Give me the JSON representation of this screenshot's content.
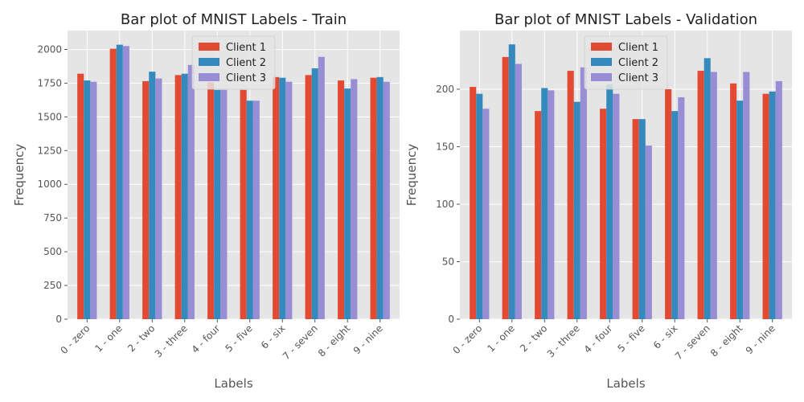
{
  "chart_data": [
    {
      "type": "bar",
      "title": "Bar plot of MNIST Labels - Train",
      "xlabel": "Labels",
      "ylabel": "Frequency",
      "categories": [
        "0 - zero",
        "1 - one",
        "2 - two",
        "3 - three",
        "4 - four",
        "5 - five",
        "6 - six",
        "7 - seven",
        "8 - eight",
        "9 - nine"
      ],
      "ylim": [
        0,
        2140
      ],
      "yticks": [
        0,
        250,
        500,
        750,
        1000,
        1250,
        1500,
        1750,
        2000
      ],
      "series": [
        {
          "name": "Client 1",
          "color": "#E24A33",
          "values": [
            1820,
            2005,
            1765,
            1810,
            1755,
            1700,
            1795,
            1810,
            1770,
            1790
          ]
        },
        {
          "name": "Client 2",
          "color": "#348ABD",
          "values": [
            1770,
            2035,
            1835,
            1820,
            1700,
            1620,
            1790,
            1860,
            1710,
            1795
          ]
        },
        {
          "name": "Client 3",
          "color": "#988ED5",
          "values": [
            1760,
            2025,
            1785,
            1885,
            1700,
            1620,
            1760,
            1945,
            1780,
            1760
          ]
        }
      ],
      "legend_position": "top-center",
      "grid": true
    },
    {
      "type": "bar",
      "title": "Bar plot of MNIST Labels - Validation",
      "xlabel": "Labels",
      "ylabel": "Frequency",
      "categories": [
        "0 - zero",
        "1 - one",
        "2 - two",
        "3 - three",
        "4 - four",
        "5 - five",
        "6 - six",
        "7 - seven",
        "8 - eight",
        "9 - nine"
      ],
      "ylim": [
        0,
        251
      ],
      "yticks": [
        0,
        50,
        100,
        150,
        200
      ],
      "series": [
        {
          "name": "Client 1",
          "color": "#E24A33",
          "values": [
            202,
            228,
            181,
            216,
            183,
            174,
            200,
            216,
            205,
            196
          ]
        },
        {
          "name": "Client 2",
          "color": "#348ABD",
          "values": [
            196,
            239,
            201,
            189,
            204,
            174,
            181,
            227,
            190,
            198
          ]
        },
        {
          "name": "Client 3",
          "color": "#988ED5",
          "values": [
            183,
            222,
            199,
            219,
            196,
            151,
            193,
            215,
            215,
            207
          ]
        }
      ],
      "legend_position": "top-center",
      "grid": true
    }
  ]
}
